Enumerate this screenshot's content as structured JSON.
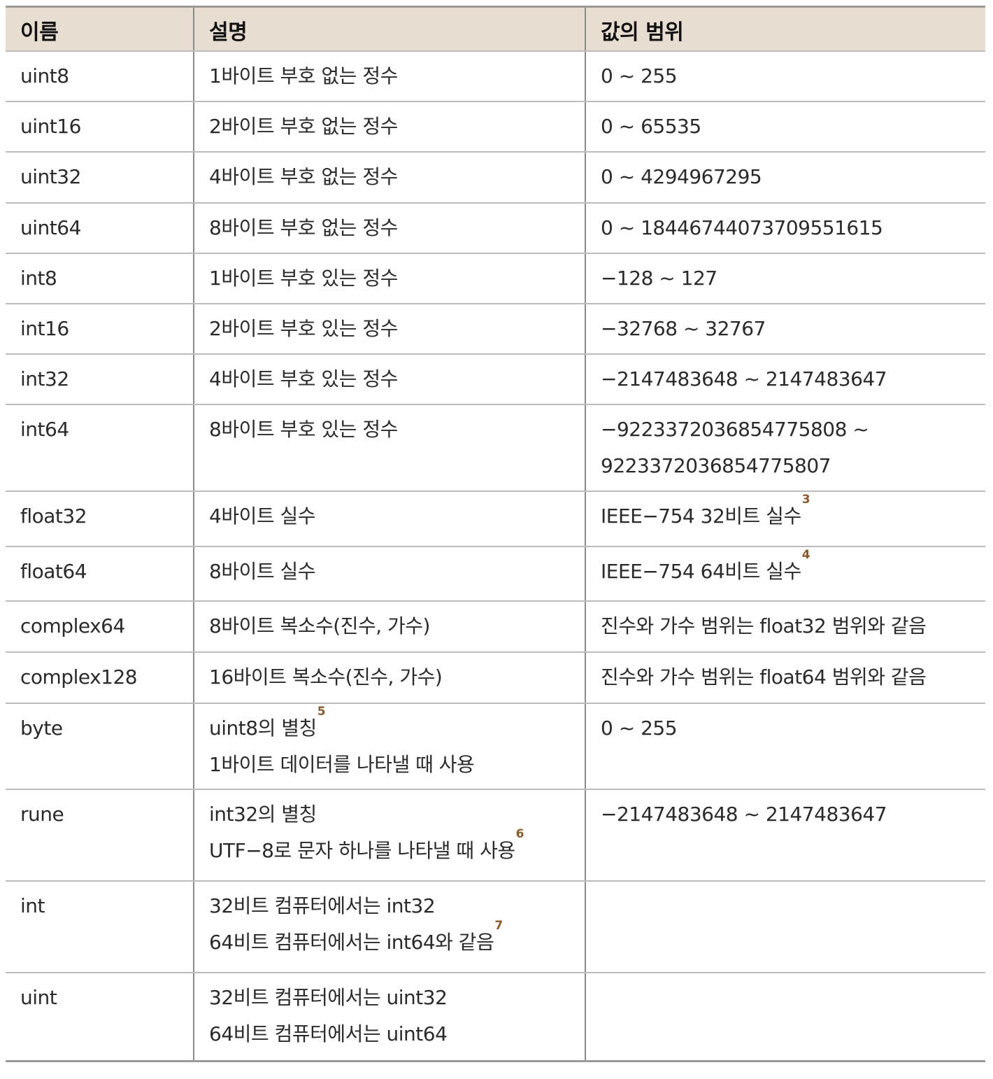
{
  "table": {
    "headers": [
      "이름",
      "설명",
      "값의 범위"
    ],
    "rows": [
      {
        "name": "uint8",
        "desc": [
          "1바이트 부호 없는 정수"
        ],
        "range": [
          "0 ~ 255"
        ]
      },
      {
        "name": "uint16",
        "desc": [
          "2바이트 부호 없는 정수"
        ],
        "range": [
          "0 ~ 65535"
        ]
      },
      {
        "name": "uint32",
        "desc": [
          "4바이트 부호 없는 정수"
        ],
        "range": [
          "0 ~ 4294967295"
        ]
      },
      {
        "name": "uint64",
        "desc": [
          "8바이트 부호 없는 정수"
        ],
        "range": [
          "0 ~ 18446744073709551615"
        ]
      },
      {
        "name": "int8",
        "desc": [
          "1바이트 부호 있는 정수"
        ],
        "range": [
          "−128 ~ 127"
        ]
      },
      {
        "name": "int16",
        "desc": [
          "2바이트 부호 있는 정수"
        ],
        "range": [
          "−32768 ~ 32767"
        ]
      },
      {
        "name": "int32",
        "desc": [
          "4바이트 부호 있는 정수"
        ],
        "range": [
          "−2147483648 ~ 2147483647"
        ]
      },
      {
        "name": "int64",
        "desc": [
          "8바이트 부호 있는 정수"
        ],
        "range": [
          "−9223372036854775808 ~",
          "9223372036854775807"
        ]
      },
      {
        "name": "float32",
        "desc": [
          "4바이트 실수"
        ],
        "range": [
          "IEEE−754 32비트 실수"
        ],
        "range_fn": "3"
      },
      {
        "name": "float64",
        "desc": [
          "8바이트 실수"
        ],
        "range": [
          "IEEE−754 64비트 실수"
        ],
        "range_fn": "4"
      },
      {
        "name": "complex64",
        "desc": [
          "8바이트 복소수(진수, 가수)"
        ],
        "range": [
          "진수와 가수 범위는 float32 범위와 같음"
        ]
      },
      {
        "name": "complex128",
        "desc": [
          "16바이트 복소수(진수, 가수)"
        ],
        "range": [
          "진수와 가수 범위는 float64 범위와 같음"
        ]
      },
      {
        "name": "byte",
        "desc": [
          "uint8의 별칭",
          "1바이트 데이터를 나타낼 때 사용"
        ],
        "desc_fn": [
          "5",
          ""
        ],
        "range": [
          "0 ~ 255"
        ]
      },
      {
        "name": "rune",
        "desc": [
          "int32의 별칭",
          "UTF−8로 문자 하나를 나타낼 때 사용"
        ],
        "desc_fn": [
          "",
          "6"
        ],
        "range": [
          "−2147483648 ~ 2147483647"
        ]
      },
      {
        "name": "int",
        "desc": [
          "32비트 컴퓨터에서는 int32",
          "64비트 컴퓨터에서는 int64와 같음"
        ],
        "desc_fn": [
          "",
          "7"
        ],
        "range": []
      },
      {
        "name": "uint",
        "desc": [
          "32비트 컴퓨터에서는 uint32",
          "64비트 컴퓨터에서는 uint64"
        ],
        "range": []
      }
    ]
  }
}
